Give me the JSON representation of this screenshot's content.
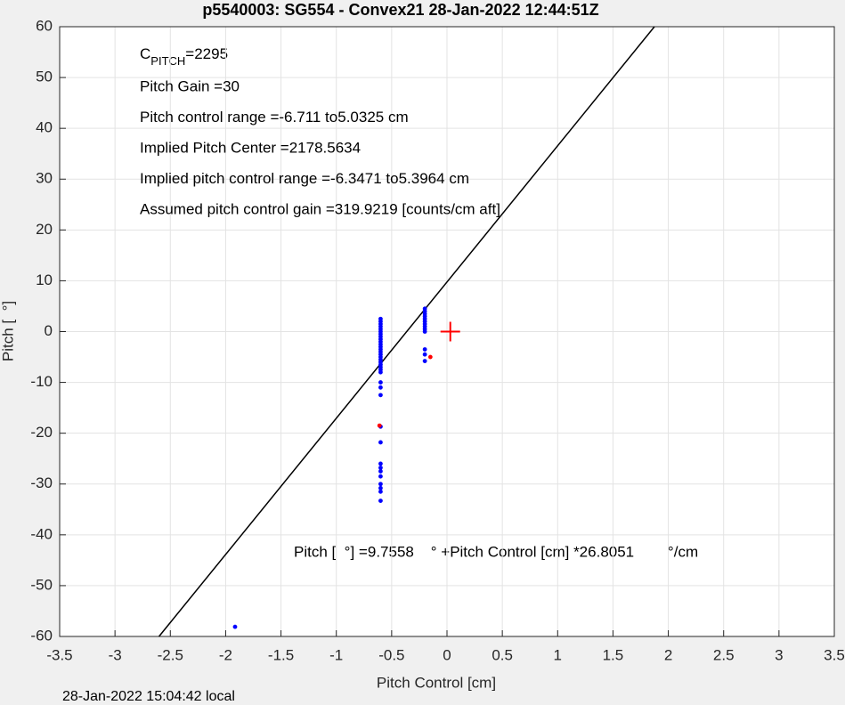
{
  "chart_data": {
    "type": "scatter",
    "title": "p5540003: SG554 - Convex21 28-Jan-2022 12:44:51Z",
    "x_label": "Pitch Control [cm]",
    "y_label": "Pitch [  °]",
    "footer": "28-Jan-2022 15:04:42 local",
    "cpitch": {
      "base": "C",
      "sub": "PITCH",
      "value": "=2295"
    },
    "annotations": [
      "Pitch Gain =30",
      "Pitch control range =-6.711 to5.0325 cm",
      "Implied Pitch Center =2178.5634",
      "Implied pitch control range =-6.3471 to5.3964 cm",
      "Assumed pitch control gain =319.9219 [counts/cm aft]"
    ],
    "equation": "Pitch [  °] =9.7558    ° +Pitch Control [cm] *26.8051        °/cm",
    "xlim": [
      -3.5,
      3.5
    ],
    "ylim": [
      -60,
      60
    ],
    "xticks": [
      -3.5,
      -3,
      -2.5,
      -2,
      -1.5,
      -1,
      -0.5,
      0,
      0.5,
      1,
      1.5,
      2,
      2.5,
      3,
      3.5
    ],
    "yticks": [
      -60,
      -50,
      -40,
      -30,
      -20,
      -10,
      0,
      10,
      20,
      30,
      40,
      50,
      60
    ],
    "grid": true,
    "series": [
      {
        "marker": "line",
        "color": "#000000",
        "x": [
          -2.6023,
          1.8744
        ],
        "y": [
          -60,
          60
        ]
      },
      {
        "marker": "dot",
        "color": "#0000ff",
        "x": [
          -0.6,
          -0.6,
          -0.6,
          -0.6,
          -0.6,
          -0.6,
          -0.6,
          -0.6,
          -0.6,
          -0.6,
          -0.6,
          -0.6,
          -0.6,
          -0.6,
          -0.6,
          -0.6,
          -0.6,
          -0.6,
          -0.6,
          -0.6,
          -0.6,
          -0.6,
          -0.6,
          -0.6,
          -0.6,
          -0.6,
          -0.6,
          -0.6,
          -0.6,
          -0.6,
          -0.6,
          -0.6,
          -0.6,
          -0.6,
          -0.6,
          -0.2,
          -0.2,
          -0.2,
          -0.2,
          -0.2,
          -0.2,
          -0.2,
          -0.2,
          -0.2,
          -0.2,
          -0.2,
          -0.2,
          -0.2,
          -1.915
        ],
        "y": [
          2.5,
          2,
          1.5,
          1,
          0.5,
          0,
          -0.5,
          -1,
          -1.5,
          -2,
          -2.5,
          -3,
          -3.5,
          -4,
          -4.5,
          -5,
          -5.5,
          -6,
          -6.5,
          -7,
          -7.5,
          -8,
          -10,
          -11,
          -12.5,
          -18.7,
          -21.8,
          -26,
          -26.8,
          -27.5,
          -28.5,
          -30,
          -30.8,
          -31.5,
          -33.3,
          4.5,
          4,
          3.5,
          3,
          2.5,
          2,
          1.5,
          1,
          0.5,
          0,
          -3.5,
          -4.5,
          -5.8,
          -58.1
        ]
      },
      {
        "marker": "dot",
        "color": "#ff0000",
        "x": [
          -0.61,
          -0.15
        ],
        "y": [
          -18.5,
          -5
        ]
      },
      {
        "marker": "plus",
        "color": "#ff0000",
        "x": [
          0.03
        ],
        "y": [
          0
        ]
      }
    ]
  }
}
